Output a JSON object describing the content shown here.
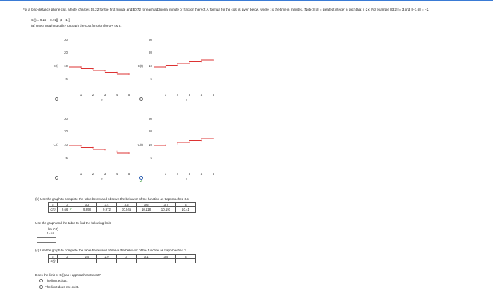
{
  "intro": "For a long-distance phone call, a hotel charges $9.22 for the first minute and $0.72 for each additional minute or fraction thereof. A formula for the cost is given below, where t is the time in minutes. (Note: [[x]] = greatest integer n such that n ≤ x. For example [[3.2]] = 3 and [[−1.6]] = −2.)",
  "formula": "C(t) = 9.22 − 0.72[[−(t − 1)]]",
  "part_a": "(a) Use a graphing utility to graph the cost function for 0 < t ≤ 5.",
  "graph_axes": {
    "y_ticks": [
      "30",
      "20",
      "10",
      "5"
    ],
    "y_label": "C(t)",
    "x_ticks": [
      "1",
      "2",
      "3",
      "4",
      "5"
    ],
    "x_label": "t"
  },
  "part_b": {
    "prompt": "(b) Use the graph to complete the table below and observe the behavior of the function as t approaches 3.5.",
    "table": {
      "t_header": "t",
      "t_values": [
        "3",
        "3.3",
        "3.4",
        "3.5",
        "3.6",
        "3.7",
        "4"
      ],
      "c_header": "C(t)",
      "c_values": [
        "9.66",
        "9.898",
        "9.972",
        "10.045",
        "10.118",
        "10.191",
        "10.41"
      ]
    },
    "limit_prompt": "Use the graph and the table to find the following limit.",
    "limit_expr": "lim C(t)",
    "limit_sub": "t→3.5"
  },
  "part_c": {
    "prompt": "(c) Use the graph to complete the table below and observe the behavior of the function as t approaches 3.",
    "table": {
      "t_header": "t",
      "t_values": [
        "2",
        "2.5",
        "2.9",
        "3",
        "3.1",
        "3.5",
        "4"
      ],
      "c_header": "C(t)"
    },
    "question": "Does the limit of C(t) as t approaches 3 exist?",
    "options": [
      "The limit exists.",
      "The limit does not exist."
    ]
  }
}
